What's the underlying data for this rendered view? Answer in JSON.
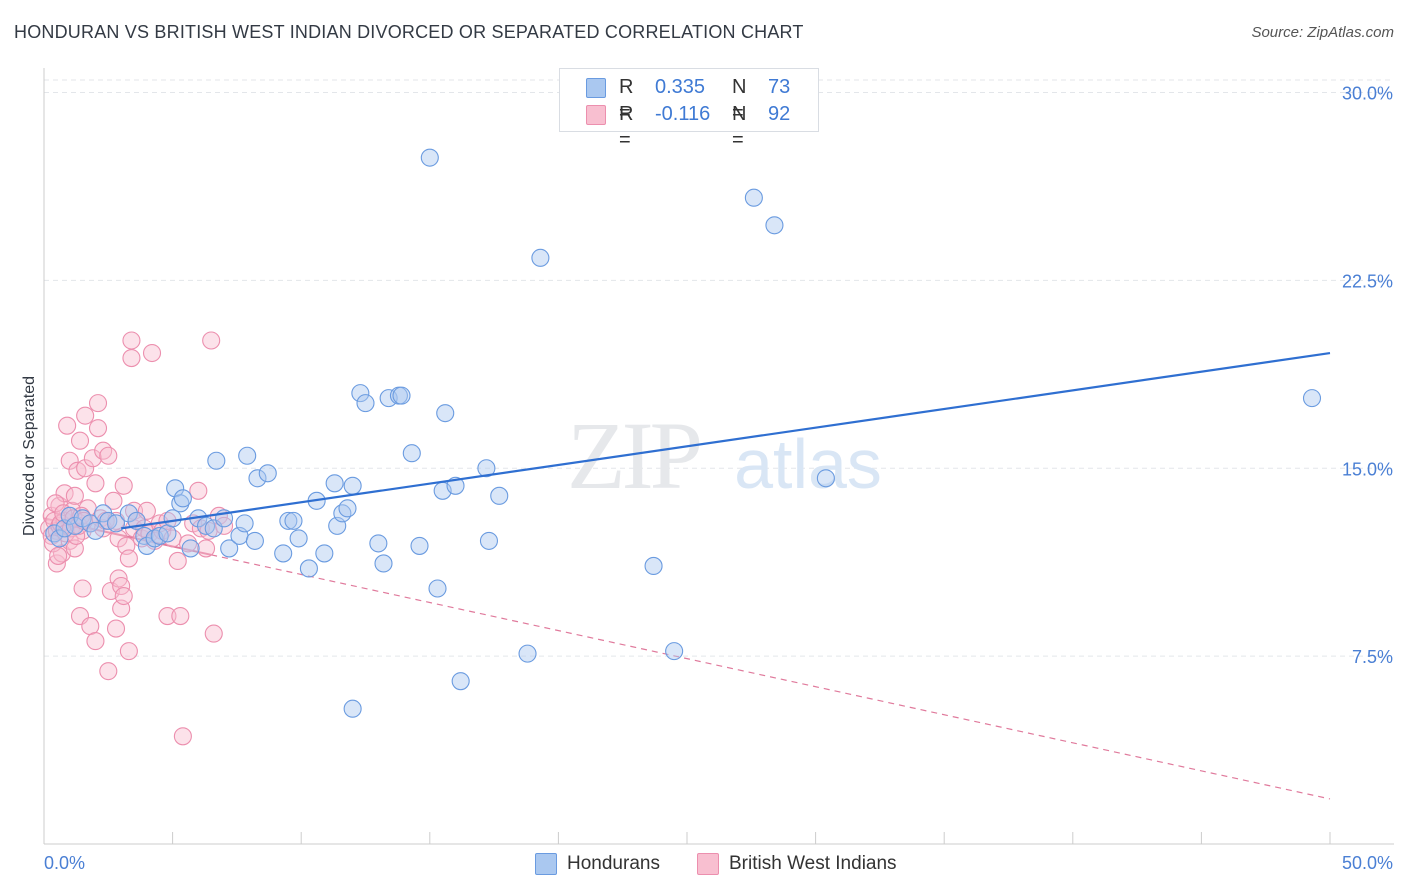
{
  "title": "HONDURAN VS BRITISH WEST INDIAN DIVORCED OR SEPARATED CORRELATION CHART",
  "source": "Source: ZipAtlas.com",
  "watermark": {
    "zip": "ZIP",
    "atlas": "atlas"
  },
  "legend": {
    "items": [
      {
        "r_label": "R =",
        "r_value": "0.335",
        "n_label": "N =",
        "n_value": "73"
      },
      {
        "r_label": "R =",
        "r_value": "-0.116",
        "n_label": "N =",
        "n_value": "92"
      }
    ]
  },
  "bottom_legend": {
    "hondurans": "Hondurans",
    "bwi": "British West Indians"
  },
  "colors": {
    "blue_fill": "#aac8f0",
    "blue_stroke": "#6a9be0",
    "blue_line": "#2f6fd1",
    "pink_fill": "#f8bfd0",
    "pink_stroke": "#ec8fae",
    "pink_line": "#e07a9c",
    "grid": "#e3e6ea",
    "axis": "#cccccc",
    "tick_text": "#4a7fd4"
  },
  "chart_data": {
    "type": "scatter",
    "title": "HONDURAN VS BRITISH WEST INDIAN DIVORCED OR SEPARATED CORRELATION CHART",
    "xlabel": "",
    "ylabel": "Divorced or Separated",
    "xlim": [
      0,
      50
    ],
    "ylim": [
      0,
      30.5
    ],
    "x_tick_labels": [
      {
        "value": 0,
        "label": "0.0%"
      },
      {
        "value": 50,
        "label": "50.0%"
      }
    ],
    "x_minor_ticks": [
      0,
      5,
      10,
      15,
      20,
      25,
      30,
      35,
      40,
      45,
      50
    ],
    "y_ticks": [
      {
        "value": 7.5,
        "label": "7.5%"
      },
      {
        "value": 15.0,
        "label": "15.0%"
      },
      {
        "value": 22.5,
        "label": "22.5%"
      },
      {
        "value": 30.0,
        "label": "30.0%"
      }
    ],
    "series": [
      {
        "name": "Hondurans",
        "color": "blue",
        "trend": {
          "x0": 3.0,
          "y0": 12.6,
          "x1": 50.0,
          "y1": 19.6,
          "style": "solid"
        },
        "points": [
          [
            0.4,
            12.4
          ],
          [
            0.6,
            12.2
          ],
          [
            0.8,
            12.6
          ],
          [
            1.0,
            13.1
          ],
          [
            1.2,
            12.7
          ],
          [
            1.5,
            13.0
          ],
          [
            1.8,
            12.8
          ],
          [
            2.0,
            12.5
          ],
          [
            2.3,
            13.2
          ],
          [
            2.5,
            12.9
          ],
          [
            2.8,
            12.8
          ],
          [
            3.3,
            13.2
          ],
          [
            3.6,
            12.9
          ],
          [
            3.9,
            12.3
          ],
          [
            4.0,
            11.9
          ],
          [
            4.3,
            12.2
          ],
          [
            4.5,
            12.3
          ],
          [
            4.8,
            12.4
          ],
          [
            5.0,
            13.0
          ],
          [
            5.1,
            14.2
          ],
          [
            5.3,
            13.6
          ],
          [
            5.4,
            13.8
          ],
          [
            5.7,
            11.8
          ],
          [
            6.0,
            13.0
          ],
          [
            6.3,
            12.7
          ],
          [
            6.6,
            12.6
          ],
          [
            6.7,
            15.3
          ],
          [
            7.0,
            13.0
          ],
          [
            7.2,
            11.8
          ],
          [
            7.6,
            12.3
          ],
          [
            7.8,
            12.8
          ],
          [
            7.9,
            15.5
          ],
          [
            8.2,
            12.1
          ],
          [
            8.3,
            14.6
          ],
          [
            8.7,
            14.8
          ],
          [
            9.3,
            11.6
          ],
          [
            9.5,
            12.9
          ],
          [
            9.7,
            12.9
          ],
          [
            9.9,
            12.2
          ],
          [
            10.3,
            11.0
          ],
          [
            10.6,
            13.7
          ],
          [
            10.9,
            11.6
          ],
          [
            11.3,
            14.4
          ],
          [
            11.4,
            12.7
          ],
          [
            11.6,
            13.2
          ],
          [
            11.8,
            13.4
          ],
          [
            12.0,
            14.3
          ],
          [
            12.3,
            18.0
          ],
          [
            12.5,
            17.6
          ],
          [
            13.0,
            12.0
          ],
          [
            13.2,
            11.2
          ],
          [
            13.4,
            17.8
          ],
          [
            13.8,
            17.9
          ],
          [
            13.9,
            17.9
          ],
          [
            14.3,
            15.6
          ],
          [
            14.6,
            11.9
          ],
          [
            15.3,
            10.2
          ],
          [
            15.5,
            14.1
          ],
          [
            15.6,
            17.2
          ],
          [
            16.0,
            14.3
          ],
          [
            16.2,
            6.5
          ],
          [
            17.2,
            15.0
          ],
          [
            17.3,
            12.1
          ],
          [
            17.7,
            13.9
          ],
          [
            18.8,
            7.6
          ],
          [
            19.3,
            23.4
          ],
          [
            23.7,
            11.1
          ],
          [
            24.5,
            7.7
          ],
          [
            27.6,
            25.8
          ],
          [
            28.4,
            24.7
          ],
          [
            30.4,
            14.6
          ],
          [
            49.3,
            17.8
          ],
          [
            15.0,
            27.4
          ],
          [
            12.0,
            5.4
          ]
        ]
      },
      {
        "name": "British West Indians",
        "color": "pink",
        "trend": {
          "x0": 0.0,
          "y0": 13.0,
          "x1": 50.0,
          "y1": 1.8,
          "style": "solid_then_dashed",
          "solid_until_x": 6.5
        },
        "points": [
          [
            0.2,
            12.6
          ],
          [
            0.3,
            12.3
          ],
          [
            0.3,
            13.1
          ],
          [
            0.4,
            12.9
          ],
          [
            0.5,
            12.5
          ],
          [
            0.5,
            11.2
          ],
          [
            0.6,
            12.7
          ],
          [
            0.6,
            13.5
          ],
          [
            0.7,
            11.6
          ],
          [
            0.8,
            12.9
          ],
          [
            0.8,
            14.0
          ],
          [
            0.9,
            16.7
          ],
          [
            1.0,
            15.3
          ],
          [
            1.0,
            12.1
          ],
          [
            1.1,
            13.3
          ],
          [
            1.2,
            11.8
          ],
          [
            1.2,
            13.9
          ],
          [
            1.3,
            14.9
          ],
          [
            1.4,
            16.1
          ],
          [
            1.4,
            9.1
          ],
          [
            1.5,
            10.2
          ],
          [
            1.5,
            12.5
          ],
          [
            1.6,
            15.0
          ],
          [
            1.6,
            17.1
          ],
          [
            1.7,
            13.4
          ],
          [
            1.8,
            8.7
          ],
          [
            1.8,
            12.8
          ],
          [
            1.9,
            15.4
          ],
          [
            2.0,
            14.4
          ],
          [
            2.0,
            8.1
          ],
          [
            2.1,
            16.6
          ],
          [
            2.1,
            17.6
          ],
          [
            2.2,
            13.0
          ],
          [
            2.3,
            15.7
          ],
          [
            2.3,
            12.6
          ],
          [
            2.4,
            12.9
          ],
          [
            2.5,
            6.9
          ],
          [
            2.5,
            15.5
          ],
          [
            2.6,
            10.1
          ],
          [
            2.7,
            13.7
          ],
          [
            2.8,
            8.6
          ],
          [
            2.8,
            12.9
          ],
          [
            2.9,
            10.6
          ],
          [
            2.9,
            12.2
          ],
          [
            3.0,
            10.3
          ],
          [
            3.0,
            9.4
          ],
          [
            3.1,
            14.3
          ],
          [
            3.1,
            9.9
          ],
          [
            3.2,
            11.9
          ],
          [
            3.3,
            7.7
          ],
          [
            3.3,
            11.4
          ],
          [
            3.4,
            19.4
          ],
          [
            3.4,
            20.1
          ],
          [
            3.5,
            12.6
          ],
          [
            3.5,
            13.3
          ],
          [
            3.6,
            12.9
          ],
          [
            3.8,
            12.2
          ],
          [
            3.9,
            12.6
          ],
          [
            4.0,
            13.3
          ],
          [
            4.1,
            12.4
          ],
          [
            4.2,
            19.6
          ],
          [
            4.3,
            12.1
          ],
          [
            4.5,
            12.8
          ],
          [
            4.6,
            12.5
          ],
          [
            4.8,
            9.1
          ],
          [
            4.8,
            12.9
          ],
          [
            5.0,
            12.2
          ],
          [
            5.2,
            11.3
          ],
          [
            5.3,
            9.1
          ],
          [
            5.4,
            4.3
          ],
          [
            5.6,
            12.0
          ],
          [
            5.8,
            12.8
          ],
          [
            6.0,
            14.1
          ],
          [
            6.1,
            12.6
          ],
          [
            6.3,
            11.8
          ],
          [
            6.4,
            12.5
          ],
          [
            6.5,
            20.1
          ],
          [
            6.6,
            8.4
          ],
          [
            6.8,
            13.1
          ],
          [
            7.0,
            12.7
          ],
          [
            0.35,
            12.0
          ],
          [
            0.45,
            13.6
          ],
          [
            0.55,
            11.5
          ],
          [
            0.65,
            12.8
          ],
          [
            0.75,
            13.2
          ],
          [
            0.85,
            12.4
          ],
          [
            1.05,
            12.6
          ],
          [
            1.15,
            13.0
          ],
          [
            1.25,
            12.3
          ],
          [
            1.35,
            12.7
          ],
          [
            1.45,
            13.1
          ],
          [
            1.55,
            12.9
          ]
        ]
      }
    ]
  }
}
